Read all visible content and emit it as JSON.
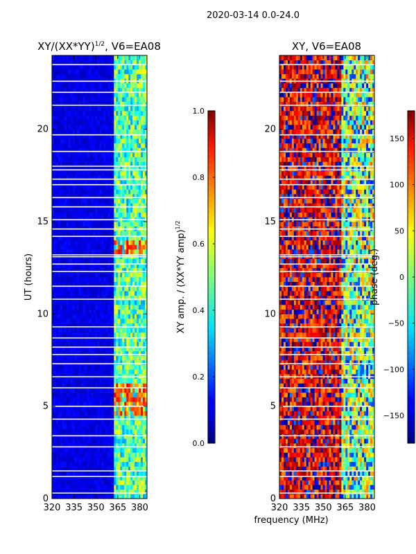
{
  "figure": {
    "suptitle": "2020-03-14 0.0-24.0",
    "shared_xlabel": "frequency (MHz)"
  },
  "chart_data": [
    {
      "type": "heatmap",
      "title": "XY/(XX*YY)",
      "title_sup": "1/2",
      "title_suffix": ", V6=EA08",
      "xlabel": "",
      "ylabel": "UT (hours)",
      "xlim": [
        320,
        385
      ],
      "ylim": [
        0,
        24
      ],
      "xticks": [
        320,
        335,
        350,
        365,
        380
      ],
      "yticks": [
        0,
        5,
        10,
        15,
        20
      ],
      "colormap": "jet",
      "colorbar": {
        "label": "XY amp. / (XX*YY amp)",
        "label_sup": "1/2",
        "range": [
          0.0,
          1.0
        ],
        "ticks": [
          "0.0",
          "0.2",
          "0.4",
          "0.6",
          "0.8",
          "1.0"
        ],
        "tick_values": [
          0.0,
          0.2,
          0.4,
          0.6,
          0.8,
          1.0
        ]
      },
      "description_of_values": {
        "background_level": 0.1,
        "high_band_mhz": [
          362,
          385
        ],
        "high_band_level": 0.45,
        "peak_hours": [
          [
            4.5,
            6.2
          ],
          [
            13.3,
            14.0
          ]
        ],
        "peak_level": 0.7
      },
      "flagged_hours": [
        0.3,
        1.2,
        1.5,
        2.8,
        3.4,
        4.3,
        5.0,
        6.0,
        6.6,
        7.3,
        7.8,
        8.2,
        8.7,
        9.3,
        10.8,
        11.5,
        12.3,
        12.7,
        13.1,
        13.2,
        14.2,
        14.6,
        15.1,
        15.8,
        16.3,
        17.0,
        17.3,
        17.8,
        18.0,
        18.8,
        19.7,
        21.3,
        22.0,
        22.6,
        23.5
      ]
    },
    {
      "type": "heatmap",
      "title": "XY, V6=EA08",
      "xlabel": "",
      "ylabel": "",
      "xlim": [
        320,
        385
      ],
      "ylim": [
        0,
        24
      ],
      "xticks": [
        320,
        335,
        350,
        365,
        380
      ],
      "yticks": [
        0,
        5,
        10,
        15,
        20
      ],
      "colormap": "jet",
      "colorbar": {
        "label": "phase (deg.)",
        "range": [
          -180,
          180
        ],
        "ticks": [
          "−150",
          "−100",
          "−50",
          "0",
          "50",
          "100",
          "150"
        ],
        "tick_values": [
          -150,
          -100,
          -50,
          0,
          50,
          100,
          150
        ]
      },
      "description_of_values": {
        "low_freq_region_mhz": [
          320,
          362
        ],
        "low_freq_phase_deg": 140,
        "high_freq_region_mhz": [
          362,
          385
        ],
        "high_freq_phase_deg": 20
      },
      "flagged_hours": [
        0.3,
        1.2,
        1.5,
        2.8,
        3.4,
        4.3,
        5.0,
        6.0,
        6.6,
        7.3,
        7.8,
        8.2,
        8.7,
        9.3,
        10.8,
        11.5,
        12.3,
        12.7,
        13.1,
        13.2,
        14.2,
        14.6,
        15.1,
        15.8,
        16.3,
        17.0,
        17.3,
        17.8,
        18.0,
        18.8,
        19.7,
        21.3,
        22.0,
        22.6,
        23.5
      ]
    }
  ],
  "colors": {
    "background": "#ffffff",
    "axes": "#000000",
    "flag_line": "#ffffff"
  }
}
